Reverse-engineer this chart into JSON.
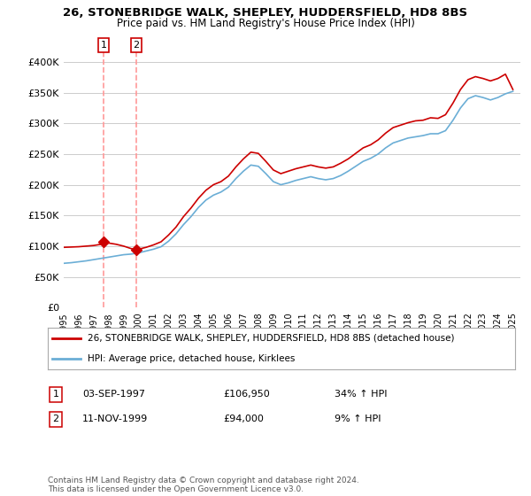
{
  "title": "26, STONEBRIDGE WALK, SHEPLEY, HUDDERSFIELD, HD8 8BS",
  "subtitle": "Price paid vs. HM Land Registry's House Price Index (HPI)",
  "legend_line1": "26, STONEBRIDGE WALK, SHEPLEY, HUDDERSFIELD, HD8 8BS (detached house)",
  "legend_line2": "HPI: Average price, detached house, Kirklees",
  "annotation1_date": "03-SEP-1997",
  "annotation1_price": "£106,950",
  "annotation1_hpi": "34% ↑ HPI",
  "annotation2_date": "11-NOV-1999",
  "annotation2_price": "£94,000",
  "annotation2_hpi": "9% ↑ HPI",
  "footer": "Contains HM Land Registry data © Crown copyright and database right 2024.\nThis data is licensed under the Open Government Licence v3.0.",
  "sale1_x": 1997.67,
  "sale1_y": 106950,
  "sale2_x": 1999.85,
  "sale2_y": 94000,
  "hpi_color": "#6baed6",
  "price_color": "#cc0000",
  "sale_marker_color": "#cc0000",
  "dashed_color": "#ff9999",
  "ylim": [
    0,
    420000
  ],
  "xlim_start": 1995.0,
  "xlim_end": 2025.5,
  "yticks": [
    0,
    50000,
    100000,
    150000,
    200000,
    250000,
    300000,
    350000,
    400000
  ],
  "ytick_labels": [
    "£0",
    "£50K",
    "£100K",
    "£150K",
    "£200K",
    "£250K",
    "£300K",
    "£350K",
    "£400K"
  ],
  "background_color": "#ffffff",
  "grid_color": "#cccccc"
}
